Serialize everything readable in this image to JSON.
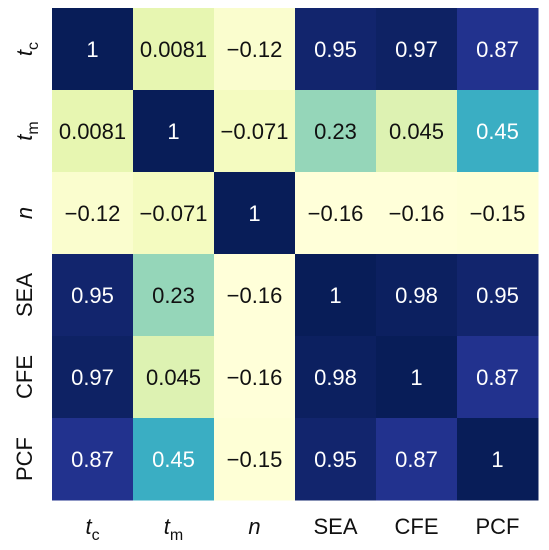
{
  "chart_data": {
    "type": "heatmap",
    "title": "",
    "x_labels": [
      {
        "main": "t",
        "sub": "c",
        "italic": true
      },
      {
        "main": "t",
        "sub": "m",
        "italic": true
      },
      {
        "main": "n",
        "sub": "",
        "italic": true
      },
      {
        "main": "SEA",
        "sub": "",
        "italic": false
      },
      {
        "main": "CFE",
        "sub": "",
        "italic": false
      },
      {
        "main": "PCF",
        "sub": "",
        "italic": false
      }
    ],
    "y_labels": [
      {
        "main": "t",
        "sub": "c",
        "italic": true
      },
      {
        "main": "t",
        "sub": "m",
        "italic": true
      },
      {
        "main": "n",
        "sub": "",
        "italic": true
      },
      {
        "main": "SEA",
        "sub": "",
        "italic": false
      },
      {
        "main": "CFE",
        "sub": "",
        "italic": false
      },
      {
        "main": "PCF",
        "sub": "",
        "italic": false
      }
    ],
    "values": [
      [
        1,
        0.0081,
        -0.12,
        0.95,
        0.97,
        0.87
      ],
      [
        0.0081,
        1,
        -0.071,
        0.23,
        0.045,
        0.45
      ],
      [
        -0.12,
        -0.071,
        1,
        -0.16,
        -0.16,
        -0.15
      ],
      [
        0.95,
        0.23,
        -0.16,
        1,
        0.98,
        0.95
      ],
      [
        0.97,
        0.045,
        -0.16,
        0.98,
        1,
        0.87
      ],
      [
        0.87,
        0.45,
        -0.15,
        0.95,
        0.87,
        1
      ]
    ],
    "value_labels": [
      [
        "1",
        "0.0081",
        "−0.12",
        "0.95",
        "0.97",
        "0.87"
      ],
      [
        "0.0081",
        "1",
        "−0.071",
        "0.23",
        "0.045",
        "0.45"
      ],
      [
        "−0.12",
        "−0.071",
        "1",
        "−0.16",
        "−0.16",
        "−0.15"
      ],
      [
        "0.95",
        "0.23",
        "−0.16",
        "1",
        "0.98",
        "0.95"
      ],
      [
        "0.97",
        "0.045",
        "−0.16",
        "0.98",
        "1",
        "0.87"
      ],
      [
        "0.87",
        "0.45",
        "−0.15",
        "0.95",
        "0.87",
        "1"
      ]
    ],
    "colormap": "YlGnBu",
    "color_range": [
      -0.16,
      1
    ],
    "colorbar": false,
    "grid": false
  }
}
